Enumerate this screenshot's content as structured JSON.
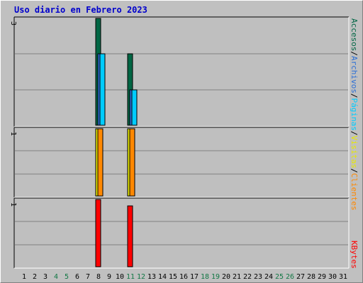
{
  "title": "Uso diario en Febrero 2023",
  "colors": {
    "background": "#c0c0c0",
    "plot_bg": "#bfbfbf",
    "title": "#0000cc",
    "accesos": "#006644",
    "archivos": "#2b6fd6",
    "paginas": "#00ccff",
    "visitas": "#e8e800",
    "clientes": "#ff8800",
    "kbytes": "#ff0000",
    "weekend_label": "#117744"
  },
  "chart_data": [
    {
      "type": "bar",
      "panel": "top",
      "ylim": [
        0,
        3
      ],
      "y_tick_label": "3",
      "x": [
        1,
        2,
        3,
        4,
        5,
        6,
        7,
        8,
        9,
        10,
        11,
        12,
        13,
        14,
        15,
        16,
        17,
        18,
        19,
        20,
        21,
        22,
        23,
        24,
        25,
        26,
        27,
        28,
        29,
        30,
        31
      ],
      "series": [
        {
          "name": "Accesos",
          "color": "#006644",
          "values": [
            0,
            0,
            0,
            0,
            0,
            0,
            0,
            3,
            0,
            0,
            2,
            0,
            0,
            0,
            0,
            0,
            0,
            0,
            0,
            0,
            0,
            0,
            0,
            0,
            0,
            0,
            0,
            0,
            0,
            0,
            0
          ]
        },
        {
          "name": "Archivos",
          "color": "#2b6fd6",
          "values": [
            0,
            0,
            0,
            0,
            0,
            0,
            0,
            2,
            0,
            0,
            1,
            0,
            0,
            0,
            0,
            0,
            0,
            0,
            0,
            0,
            0,
            0,
            0,
            0,
            0,
            0,
            0,
            0,
            0,
            0,
            0
          ]
        },
        {
          "name": "Páginas",
          "color": "#00ccff",
          "values": [
            0,
            0,
            0,
            0,
            0,
            0,
            0,
            2,
            0,
            0,
            1,
            0,
            0,
            0,
            0,
            0,
            0,
            0,
            0,
            0,
            0,
            0,
            0,
            0,
            0,
            0,
            0,
            0,
            0,
            0,
            0
          ]
        }
      ]
    },
    {
      "type": "bar",
      "panel": "middle",
      "ylim": [
        0,
        1
      ],
      "y_tick_label": "1",
      "x": [
        1,
        2,
        3,
        4,
        5,
        6,
        7,
        8,
        9,
        10,
        11,
        12,
        13,
        14,
        15,
        16,
        17,
        18,
        19,
        20,
        21,
        22,
        23,
        24,
        25,
        26,
        27,
        28,
        29,
        30,
        31
      ],
      "series": [
        {
          "name": "Visitas",
          "color": "#e8e800",
          "values": [
            0,
            0,
            0,
            0,
            0,
            0,
            0,
            1,
            0,
            0,
            1,
            0,
            0,
            0,
            0,
            0,
            0,
            0,
            0,
            0,
            0,
            0,
            0,
            0,
            0,
            0,
            0,
            0,
            0,
            0,
            0
          ]
        },
        {
          "name": "Clientes",
          "color": "#ff8800",
          "values": [
            0,
            0,
            0,
            0,
            0,
            0,
            0,
            1,
            0,
            0,
            1,
            0,
            0,
            0,
            0,
            0,
            0,
            0,
            0,
            0,
            0,
            0,
            0,
            0,
            0,
            0,
            0,
            0,
            0,
            0,
            0
          ]
        }
      ]
    },
    {
      "type": "bar",
      "panel": "bottom",
      "ylim": [
        0,
        1
      ],
      "y_tick_label": "1",
      "x": [
        1,
        2,
        3,
        4,
        5,
        6,
        7,
        8,
        9,
        10,
        11,
        12,
        13,
        14,
        15,
        16,
        17,
        18,
        19,
        20,
        21,
        22,
        23,
        24,
        25,
        26,
        27,
        28,
        29,
        30,
        31
      ],
      "series": [
        {
          "name": "KBytes",
          "color": "#ff0000",
          "values": [
            0,
            0,
            0,
            0,
            0,
            0,
            0,
            1,
            0,
            0,
            0.91,
            0,
            0,
            0,
            0,
            0,
            0,
            0,
            0,
            0,
            0,
            0,
            0,
            0,
            0,
            0,
            0,
            0,
            0,
            0,
            0
          ]
        }
      ]
    }
  ],
  "x_labels": [
    "1",
    "2",
    "3",
    "4",
    "5",
    "6",
    "7",
    "8",
    "9",
    "10",
    "11",
    "12",
    "13",
    "14",
    "15",
    "16",
    "17",
    "18",
    "19",
    "20",
    "21",
    "22",
    "23",
    "24",
    "25",
    "26",
    "27",
    "28",
    "29",
    "30",
    "31"
  ],
  "weekend_days": [
    4,
    5,
    11,
    12,
    18,
    19,
    25,
    26
  ],
  "legend_top": [
    "Accesos",
    "/",
    "Archivos",
    "/",
    "Páginas",
    "/",
    "Visitas",
    "/",
    "Clientes"
  ],
  "legend_bottom": "KBytes"
}
